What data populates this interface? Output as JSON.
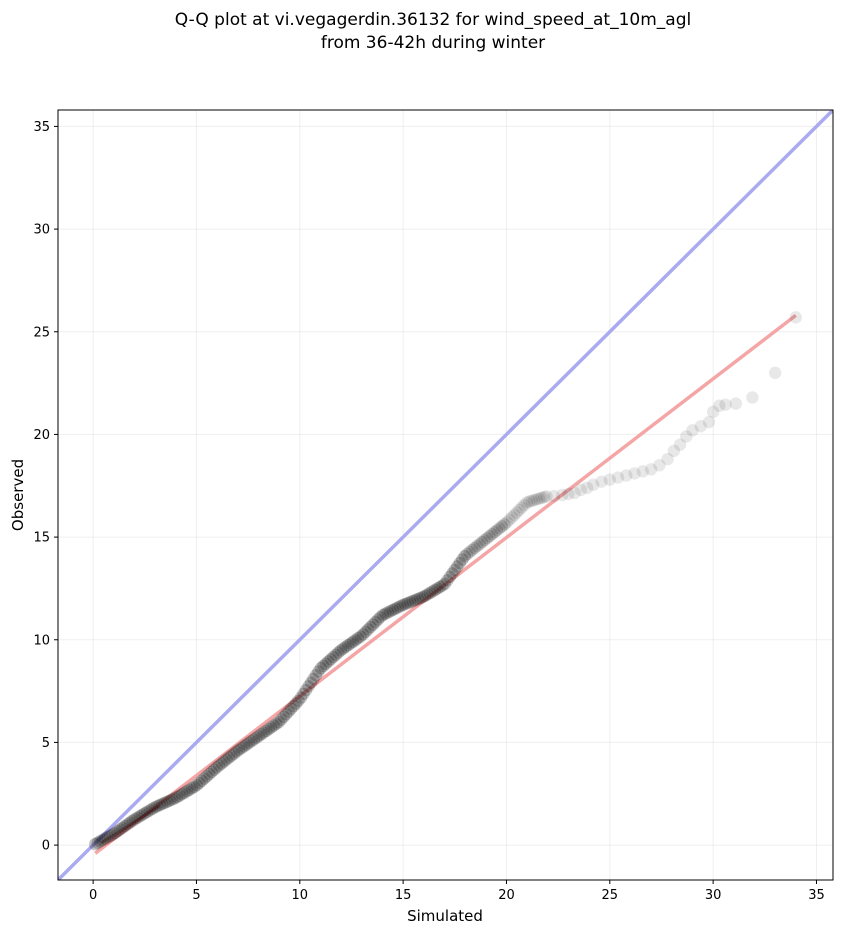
{
  "chart_data": {
    "type": "scatter",
    "title_lines": [
      "Q-Q plot at vi.vegagerdin.36132 for wind_speed_at_10m_agl",
      "from 36-42h during winter"
    ],
    "xlabel": "Simulated",
    "ylabel": "Observed",
    "xlim": [
      -1.7,
      35.8
    ],
    "ylim": [
      -1.7,
      35.8
    ],
    "xticks": [
      0,
      5,
      10,
      15,
      20,
      25,
      30,
      35
    ],
    "yticks": [
      0,
      5,
      10,
      15,
      20,
      25,
      30,
      35
    ],
    "grid": true,
    "reference_line": {
      "color": "#aaaaf0",
      "slope": 1,
      "intercept": 0
    },
    "fit_line": {
      "color": "#f4a6a6",
      "x": [
        0.1,
        34.0
      ],
      "y": [
        -0.4,
        25.8
      ]
    },
    "marker_color": "#000000",
    "curve": [
      [
        0.1,
        0.05
      ],
      [
        1,
        0.55
      ],
      [
        2,
        1.25
      ],
      [
        3,
        1.85
      ],
      [
        4,
        2.3
      ],
      [
        5,
        2.9
      ],
      [
        6,
        3.8
      ],
      [
        7,
        4.6
      ],
      [
        8,
        5.3
      ],
      [
        9,
        6.0
      ],
      [
        10,
        7.1
      ],
      [
        11,
        8.6
      ],
      [
        12,
        9.5
      ],
      [
        13,
        10.2
      ],
      [
        14,
        11.2
      ],
      [
        15,
        11.7
      ],
      [
        16,
        12.1
      ],
      [
        17,
        12.7
      ],
      [
        18,
        14.1
      ],
      [
        19,
        14.9
      ],
      [
        20,
        15.7
      ],
      [
        21,
        16.7
      ],
      [
        22,
        17.0
      ]
    ],
    "tail_points": [
      [
        22.3,
        17.0
      ],
      [
        22.7,
        17.05
      ],
      [
        23.0,
        17.1
      ],
      [
        23.3,
        17.15
      ],
      [
        23.6,
        17.3
      ],
      [
        23.9,
        17.4
      ],
      [
        24.2,
        17.55
      ],
      [
        24.6,
        17.7
      ],
      [
        25.0,
        17.8
      ],
      [
        25.4,
        17.9
      ],
      [
        25.8,
        18.0
      ],
      [
        26.2,
        18.1
      ],
      [
        26.6,
        18.2
      ],
      [
        27.0,
        18.3
      ],
      [
        27.4,
        18.5
      ],
      [
        27.8,
        18.8
      ],
      [
        28.1,
        19.2
      ],
      [
        28.4,
        19.5
      ],
      [
        28.7,
        19.9
      ],
      [
        29.0,
        20.2
      ],
      [
        29.4,
        20.4
      ],
      [
        29.8,
        20.6
      ],
      [
        30.0,
        21.1
      ],
      [
        30.3,
        21.4
      ],
      [
        30.6,
        21.45
      ],
      [
        31.1,
        21.5
      ],
      [
        31.9,
        21.8
      ],
      [
        33.0,
        23.0
      ],
      [
        34.0,
        25.7
      ]
    ]
  }
}
